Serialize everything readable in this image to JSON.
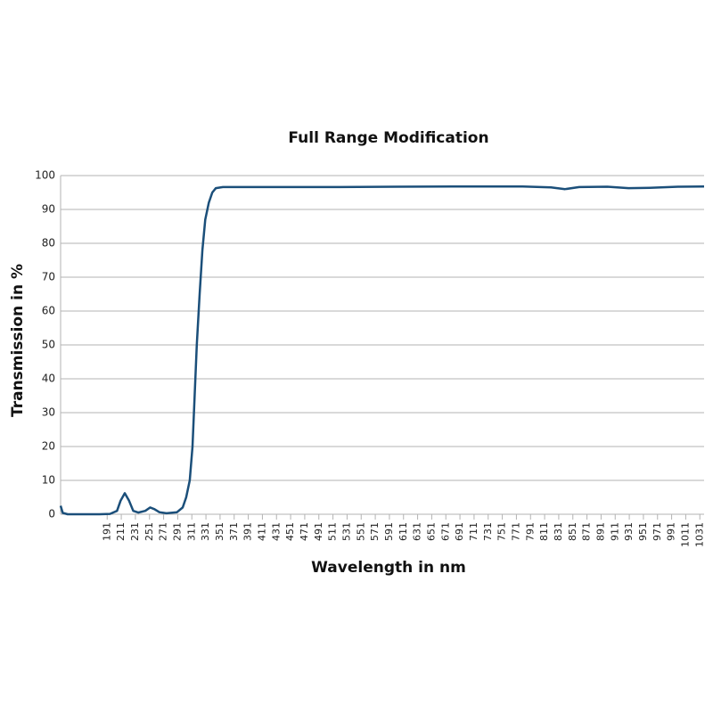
{
  "chart_data": {
    "type": "line",
    "title": "Full Range Modification",
    "x_label": "Wavelength in nm",
    "y_label": "Transmission in %",
    "x": [
      125,
      128,
      135,
      180,
      195,
      205,
      210,
      216,
      222,
      228,
      235,
      245,
      252,
      258,
      265,
      275,
      290,
      298,
      303,
      308,
      312,
      315,
      318,
      322,
      326,
      330,
      335,
      340,
      345,
      355,
      400,
      500,
      600,
      700,
      780,
      820,
      840,
      860,
      900,
      930,
      960,
      1000,
      1037
    ],
    "values": [
      2.5,
      0.4,
      0,
      0,
      0.1,
      1,
      4,
      6.2,
      4,
      1,
      0.5,
      1,
      2,
      1.5,
      0.6,
      0.3,
      0.6,
      2,
      5,
      10,
      20,
      35,
      50,
      65,
      78,
      87,
      92,
      95,
      96.3,
      96.6,
      96.6,
      96.6,
      96.7,
      96.8,
      96.8,
      96.5,
      96,
      96.6,
      96.7,
      96.3,
      96.4,
      96.7,
      96.8
    ],
    "color": "#1b4f7a",
    "xlim": [
      125,
      1037
    ],
    "xticks": [
      191,
      211,
      231,
      251,
      271,
      291,
      311,
      331,
      351,
      371,
      391,
      411,
      431,
      451,
      471,
      491,
      511,
      531,
      551,
      571,
      591,
      611,
      631,
      651,
      671,
      691,
      711,
      731,
      751,
      771,
      791,
      811,
      831,
      851,
      871,
      891,
      911,
      931,
      951,
      971,
      991,
      1011,
      1031
    ],
    "ylim": [
      0,
      100
    ],
    "yticks": [
      0,
      10,
      20,
      30,
      40,
      50,
      60,
      70,
      80,
      90,
      100
    ],
    "grid": true
  }
}
